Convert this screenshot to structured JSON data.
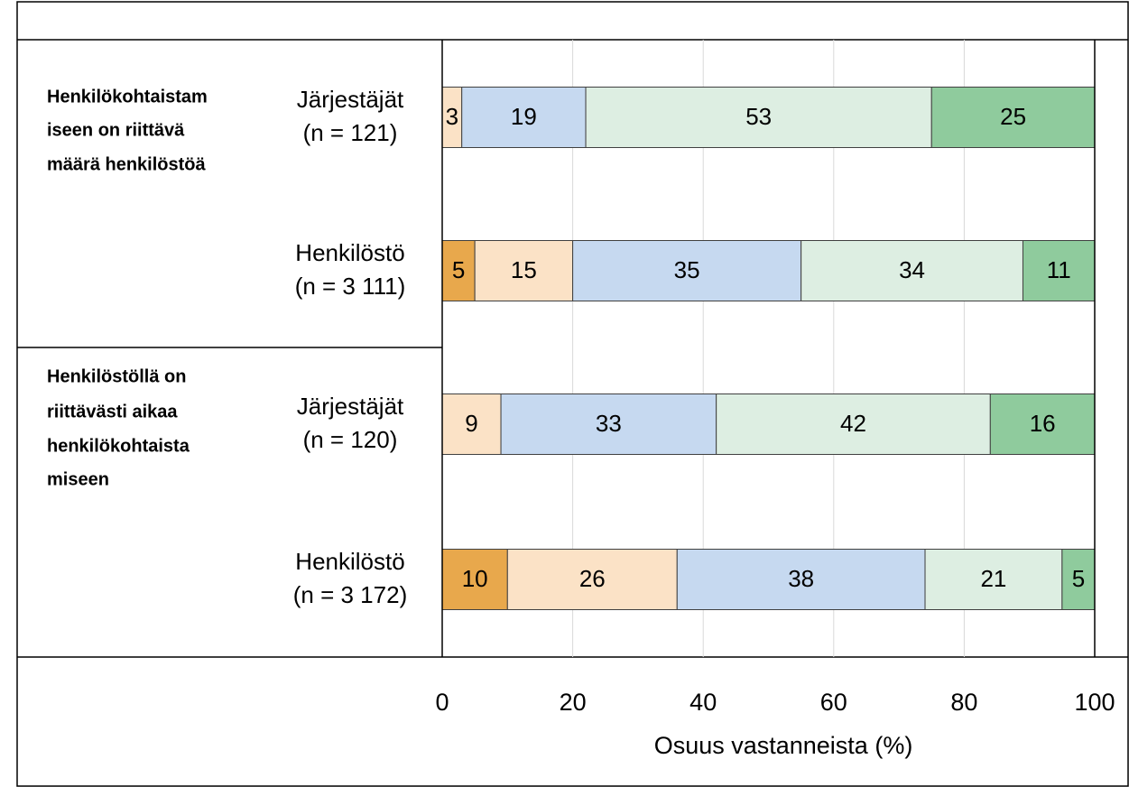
{
  "chart_data": {
    "type": "stacked-barh",
    "groups": [
      {
        "label_lines": [
          "Henkilökohtaistam",
          "iseen on riittävä",
          "määrä henkilöstöä"
        ]
      },
      {
        "label_lines": [
          "Henkilöstöllä on",
          "riittävästi aikaa",
          "henkilökohtaista",
          "miseen"
        ]
      }
    ],
    "categories": [
      [
        "Järjestäjät",
        "(n = 121)"
      ],
      [
        "Henkilöstö",
        "(n = 3 111)"
      ],
      [
        "Järjestäjät",
        "(n = 120)"
      ],
      [
        "Henkilöstö",
        "(n = 3 172)"
      ]
    ],
    "series": [
      {
        "color": "#e8a84c",
        "values": [
          null,
          5,
          null,
          10
        ]
      },
      {
        "color": "#fbe2c6",
        "values": [
          3,
          15,
          9,
          26
        ]
      },
      {
        "color": "#c6d9f0",
        "values": [
          19,
          35,
          33,
          38
        ]
      },
      {
        "color": "#ddeee2",
        "values": [
          53,
          34,
          42,
          21
        ]
      },
      {
        "color": "#8fcb9d",
        "values": [
          25,
          11,
          16,
          5
        ]
      }
    ],
    "xlabel": "Osuus vastanneista (%)",
    "xlim": [
      0,
      100
    ],
    "xticks": [
      0,
      20,
      40,
      60,
      80,
      100
    ],
    "grid": true
  }
}
